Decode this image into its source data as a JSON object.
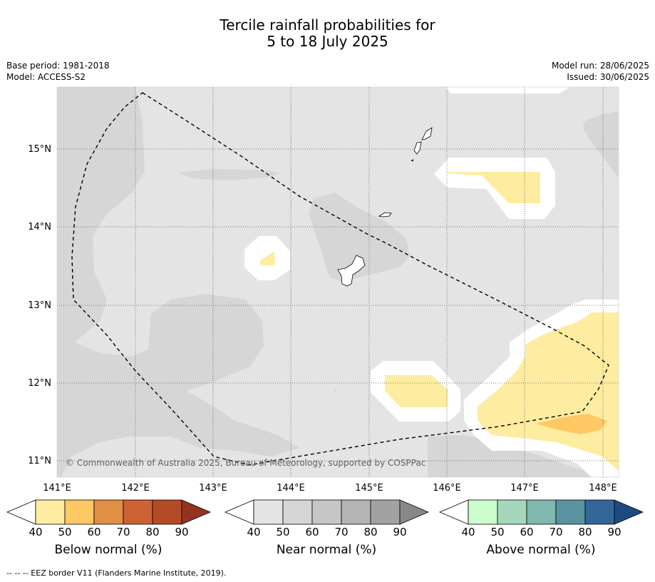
{
  "title": {
    "line1": "Tercile rainfall probabilities for",
    "line2": "5 to 18 July 2025"
  },
  "meta_left": {
    "base_period": "Base period: 1981-2018",
    "model": "Model: ACCESS-S2"
  },
  "meta_right": {
    "model_run": "Model run: 28/06/2025",
    "issued": "Issued: 30/06/2025"
  },
  "map": {
    "lon_labels": [
      "141°E",
      "142°E",
      "143°E",
      "144°E",
      "145°E",
      "146°E",
      "147°E",
      "148°E"
    ],
    "lat_labels": [
      "15°N",
      "14°N",
      "13°N",
      "12°N",
      "11°N"
    ],
    "copyright": "© Commonwealth of Australia 2025, Bureau of Meteorology, supported by COSPPac",
    "colors": {
      "background": "#e4e4e4",
      "near_50": "#d6d6d6",
      "white_gap": "#ffffff",
      "below_40": "#feeca0",
      "below_50": "#fec865",
      "eez_line": "#000000"
    }
  },
  "colorbars": [
    {
      "id": "below",
      "label": "Below normal (%)",
      "ticks": [
        "40",
        "50",
        "60",
        "70",
        "80",
        "90"
      ],
      "colors": [
        "#ffffff",
        "#feeca0",
        "#fec865",
        "#e08f44",
        "#cc6233",
        "#b34a26",
        "#943320"
      ]
    },
    {
      "id": "near",
      "label": "Near normal (%)",
      "ticks": [
        "40",
        "50",
        "60",
        "70",
        "80",
        "90"
      ],
      "colors": [
        "#ffffff",
        "#e4e4e4",
        "#d6d6d6",
        "#c6c6c6",
        "#b4b4b4",
        "#a2a2a2",
        "#888888"
      ]
    },
    {
      "id": "above",
      "label": "Above normal (%)",
      "ticks": [
        "40",
        "50",
        "60",
        "70",
        "80",
        "90"
      ],
      "colors": [
        "#ffffff",
        "#ccfdcc",
        "#a6d7bc",
        "#82b6b0",
        "#5a92a2",
        "#33669a",
        "#1e4a82"
      ]
    }
  ],
  "footnote": "--  --  -- EEZ border V11 (Flanders Marine Institute, 2019)."
}
